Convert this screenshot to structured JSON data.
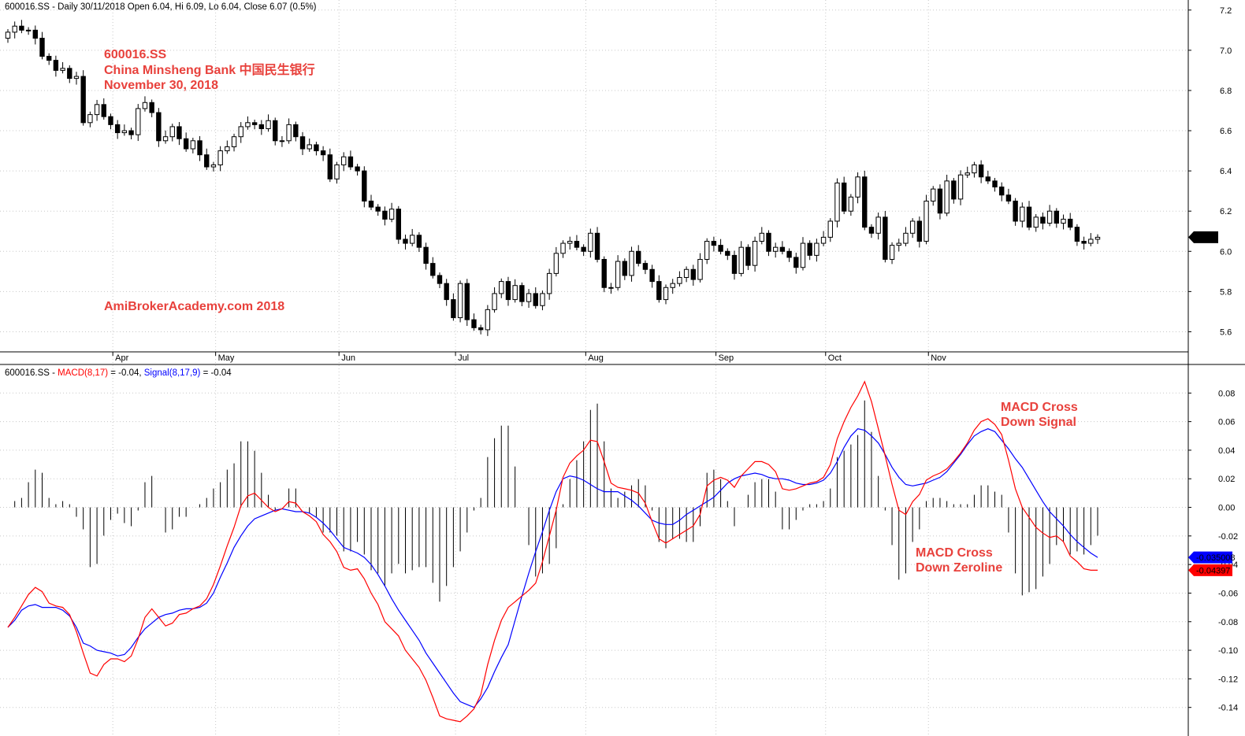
{
  "colors": {
    "candle": "#000000",
    "macd": "#ff0000",
    "signal": "#0000ff",
    "histogram": "#000000",
    "annotation": "#e8413c",
    "price_tag_bg": "#000000",
    "signal_tag_bg": "#0000ff",
    "macd_tag_bg": "#ff0000"
  },
  "chart_data": [
    {
      "type": "candlestick",
      "header": "600016.SS - Daily 30/11/2018 Open 6.04, Hi 6.09, Lo 6.04, Close 6.07 (0.5%)",
      "annotations": {
        "ticker": "600016.SS",
        "company": "China Minsheng Bank 中国民生银行",
        "date": "November 30, 2018",
        "watermark": "AmiBrokerAcademy.com  2018"
      },
      "ylim": [
        5.5,
        7.25
      ],
      "yticks": [
        "7.2",
        "7.0",
        "6.8",
        "6.6",
        "6.4",
        "6.2",
        "6.0",
        "5.8",
        "5.6"
      ],
      "xticks": [
        "Apr",
        "May",
        "Jun",
        "Jul",
        "Aug",
        "Sep",
        "Oct",
        "Nov"
      ],
      "last_price_label": "6.07",
      "close": [
        7.09,
        7.12,
        7.1,
        7.1,
        7.06,
        6.97,
        6.95,
        6.9,
        6.91,
        6.86,
        6.87,
        6.64,
        6.68,
        6.73,
        6.67,
        6.63,
        6.59,
        6.6,
        6.58,
        6.71,
        6.74,
        6.69,
        6.55,
        6.57,
        6.62,
        6.56,
        6.51,
        6.55,
        6.48,
        6.42,
        6.43,
        6.5,
        6.52,
        6.57,
        6.62,
        6.64,
        6.63,
        6.61,
        6.65,
        6.55,
        6.55,
        6.63,
        6.57,
        6.51,
        6.53,
        6.5,
        6.48,
        6.36,
        6.43,
        6.47,
        6.42,
        6.4,
        6.25,
        6.22,
        6.2,
        6.16,
        6.21,
        6.06,
        6.04,
        6.08,
        6.02,
        5.94,
        5.88,
        5.84,
        5.76,
        5.67,
        5.84,
        5.66,
        5.62,
        5.61,
        5.71,
        5.79,
        5.85,
        5.76,
        5.83,
        5.75,
        5.79,
        5.73,
        5.79,
        5.89,
        5.99,
        6.04,
        6.05,
        6.02,
        6.0,
        6.09,
        5.96,
        5.82,
        5.82,
        5.95,
        5.88,
        6.0,
        5.94,
        5.91,
        5.85,
        5.76,
        5.82,
        5.84,
        5.87,
        5.91,
        5.86,
        5.96,
        6.05,
        6.03,
        6.0,
        5.98,
        5.89,
        6.02,
        5.93,
        6.05,
        6.09,
        6.0,
        6.02,
        6.0,
        5.97,
        5.92,
        6.04,
        5.98,
        6.04,
        6.07,
        6.15,
        6.34,
        6.2,
        6.27,
        6.37,
        6.12,
        6.09,
        6.17,
        5.96,
        6.03,
        6.04,
        6.09,
        6.15,
        6.05,
        6.25,
        6.31,
        6.19,
        6.35,
        6.26,
        6.38,
        6.39,
        6.43,
        6.37,
        6.35,
        6.32,
        6.28,
        6.25,
        6.15,
        6.22,
        6.12,
        6.17,
        6.14,
        6.2,
        6.14,
        6.16,
        6.12,
        6.05,
        6.04,
        6.06,
        6.07
      ]
    },
    {
      "type": "line+histogram",
      "header": {
        "ticker": "600016.SS - ",
        "macd_label": "MACD(8,17)",
        "macd_value": " = -0.04, ",
        "signal_label": "Signal(8,17,9)",
        "signal_value": " = -0.04"
      },
      "annotations": {
        "cross_signal_1": "MACD Cross",
        "cross_signal_2": "Down  Signal",
        "cross_zero_1": "MACD Cross",
        "cross_zero_2": "Down Zeroline"
      },
      "ylim": [
        -0.16,
        0.1
      ],
      "yticks": [
        "0.08",
        "0.06",
        "0.04",
        "0.02",
        "0.00",
        "-0.02",
        "-0.04",
        "-0.06",
        "-0.08",
        "-0.10",
        "-0.12",
        "-0.14"
      ],
      "series": [
        {
          "name": "MACD(8,17)",
          "last_label": "-0.04397",
          "values": [
            -0.084,
            -0.077,
            -0.069,
            -0.061,
            -0.056,
            -0.059,
            -0.067,
            -0.069,
            -0.07,
            -0.075,
            -0.087,
            -0.102,
            -0.116,
            -0.118,
            -0.11,
            -0.106,
            -0.106,
            -0.108,
            -0.104,
            -0.092,
            -0.077,
            -0.071,
            -0.077,
            -0.083,
            -0.081,
            -0.075,
            -0.074,
            -0.071,
            -0.069,
            -0.064,
            -0.054,
            -0.041,
            -0.027,
            -0.014,
            0.001,
            0.008,
            0.01,
            0.005,
            0.0,
            -0.003,
            -0.001,
            0.004,
            0.003,
            -0.003,
            -0.006,
            -0.01,
            -0.019,
            -0.024,
            -0.031,
            -0.042,
            -0.044,
            -0.043,
            -0.05,
            -0.06,
            -0.068,
            -0.08,
            -0.085,
            -0.09,
            -0.1,
            -0.106,
            -0.112,
            -0.121,
            -0.133,
            -0.146,
            -0.148,
            -0.149,
            -0.15,
            -0.146,
            -0.141,
            -0.131,
            -0.11,
            -0.093,
            -0.079,
            -0.07,
            -0.066,
            -0.062,
            -0.058,
            -0.053,
            -0.038,
            -0.02,
            -0.002,
            0.021,
            0.031,
            0.036,
            0.04,
            0.047,
            0.046,
            0.032,
            0.017,
            0.014,
            0.013,
            0.012,
            0.01,
            0.003,
            -0.01,
            -0.022,
            -0.025,
            -0.022,
            -0.019,
            -0.016,
            -0.013,
            -0.005,
            0.015,
            0.019,
            0.021,
            0.019,
            0.014,
            0.022,
            0.027,
            0.032,
            0.032,
            0.03,
            0.025,
            0.013,
            0.012,
            0.013,
            0.015,
            0.017,
            0.018,
            0.021,
            0.03,
            0.048,
            0.06,
            0.07,
            0.078,
            0.088,
            0.074,
            0.055,
            0.036,
            0.016,
            -0.002,
            -0.005,
            0.004,
            0.009,
            0.019,
            0.022,
            0.024,
            0.027,
            0.032,
            0.038,
            0.045,
            0.054,
            0.06,
            0.062,
            0.058,
            0.051,
            0.033,
            0.013,
            0.0,
            -0.007,
            -0.014,
            -0.018,
            -0.021,
            -0.02,
            -0.024,
            -0.034,
            -0.038,
            -0.043,
            -0.044,
            -0.044
          ]
        },
        {
          "name": "Signal(8,17,9)",
          "last_label": "-0.035008",
          "values": [
            -0.084,
            -0.079,
            -0.072,
            -0.069,
            -0.068,
            -0.07,
            -0.07,
            -0.07,
            -0.072,
            -0.076,
            -0.084,
            -0.095,
            -0.097,
            -0.1,
            -0.101,
            -0.102,
            -0.104,
            -0.103,
            -0.098,
            -0.091,
            -0.085,
            -0.081,
            -0.077,
            -0.075,
            -0.074,
            -0.072,
            -0.071,
            -0.071,
            -0.07,
            -0.067,
            -0.06,
            -0.049,
            -0.039,
            -0.028,
            -0.02,
            -0.013,
            -0.008,
            -0.006,
            -0.004,
            -0.002,
            -0.001,
            -0.002,
            -0.003,
            -0.003,
            -0.004,
            -0.007,
            -0.011,
            -0.016,
            -0.022,
            -0.028,
            -0.03,
            -0.032,
            -0.035,
            -0.04,
            -0.047,
            -0.055,
            -0.064,
            -0.072,
            -0.079,
            -0.086,
            -0.093,
            -0.102,
            -0.109,
            -0.116,
            -0.123,
            -0.13,
            -0.136,
            -0.138,
            -0.14,
            -0.134,
            -0.126,
            -0.115,
            -0.105,
            -0.096,
            -0.079,
            -0.062,
            -0.046,
            -0.031,
            -0.017,
            -0.002,
            0.011,
            0.02,
            0.022,
            0.021,
            0.019,
            0.016,
            0.013,
            0.011,
            0.011,
            0.011,
            0.008,
            0.005,
            0.001,
            -0.004,
            -0.009,
            -0.011,
            -0.012,
            -0.012,
            -0.009,
            -0.005,
            -0.002,
            0.001,
            0.004,
            0.007,
            0.012,
            0.017,
            0.02,
            0.022,
            0.023,
            0.024,
            0.023,
            0.021,
            0.02,
            0.02,
            0.019,
            0.017,
            0.016,
            0.016,
            0.017,
            0.019,
            0.024,
            0.032,
            0.042,
            0.05,
            0.055,
            0.054,
            0.05,
            0.045,
            0.037,
            0.028,
            0.021,
            0.016,
            0.015,
            0.016,
            0.017,
            0.019,
            0.021,
            0.025,
            0.031,
            0.037,
            0.044,
            0.05,
            0.053,
            0.055,
            0.053,
            0.047,
            0.041,
            0.034,
            0.028,
            0.02,
            0.012,
            0.004,
            -0.003,
            -0.008,
            -0.013,
            -0.019,
            -0.024,
            -0.028,
            -0.032,
            -0.035
          ]
        }
      ]
    }
  ]
}
